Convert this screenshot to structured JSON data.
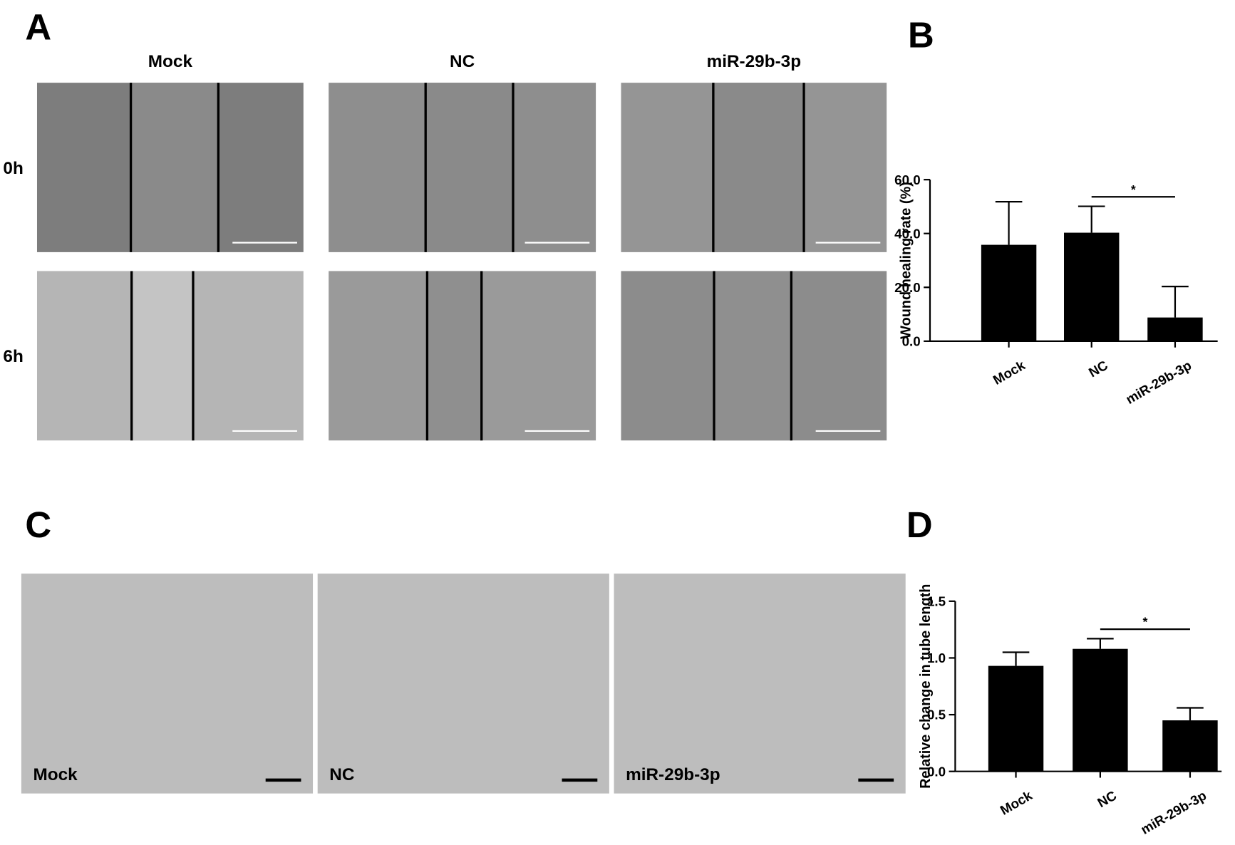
{
  "panels": {
    "A": {
      "letter": "A",
      "columns": [
        "Mock",
        "NC",
        "miR-29b-3p"
      ],
      "rows": [
        "0h",
        "6h"
      ]
    },
    "B": {
      "letter": "B"
    },
    "C": {
      "letter": "C",
      "labels": [
        "Mock",
        "NC",
        "miR-29b-3p"
      ]
    },
    "D": {
      "letter": "D"
    }
  },
  "chart_data": [
    {
      "type": "bar",
      "y_label": "Wound healing rate (%)",
      "categories": [
        "Mock",
        "NC",
        "miR-29b-3p"
      ],
      "values": [
        35.8,
        40.3,
        8.8
      ],
      "errors": [
        16.0,
        9.8,
        11.5
      ],
      "color": "#000000",
      "ylim": [
        0,
        60
      ],
      "yticks": [
        {
          "value": 0,
          "label": "0.0"
        },
        {
          "value": 20,
          "label": "20.0"
        },
        {
          "value": 40,
          "label": "40.0"
        },
        {
          "value": 60,
          "label": "60.0"
        }
      ],
      "annotations": [
        "*"
      ]
    },
    {
      "type": "bar",
      "y_label": "Relative change in tube length",
      "categories": [
        "Mock",
        "NC",
        "miR-29b-3p"
      ],
      "values": [
        0.93,
        1.08,
        0.45
      ],
      "errors": [
        0.12,
        0.09,
        0.11
      ],
      "color": "#000000",
      "ylim": [
        0,
        1.5
      ],
      "yticks": [
        {
          "value": 0,
          "label": "0.0"
        },
        {
          "value": 0.5,
          "label": "0.5"
        },
        {
          "value": 1.0,
          "label": "1.0"
        },
        {
          "value": 1.5,
          "label": "1.5"
        }
      ],
      "annotations": [
        "*"
      ]
    }
  ]
}
